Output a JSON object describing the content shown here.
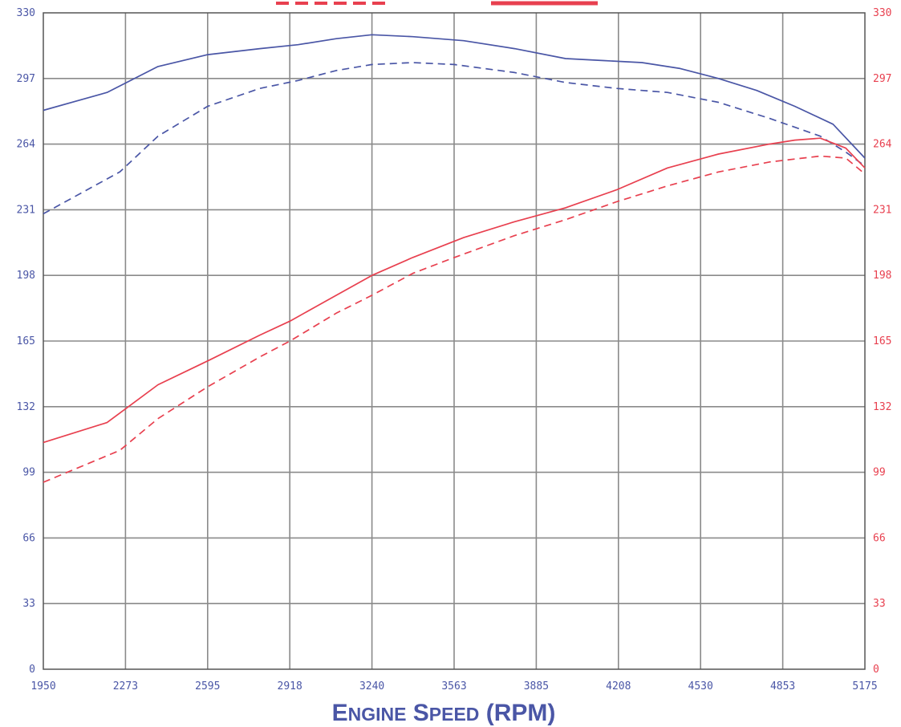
{
  "chart_data": {
    "type": "line",
    "xlabel": "Engine Speed (RPM)",
    "x_ticks": [
      "1950",
      "2273",
      "2595",
      "2918",
      "3240",
      "3563",
      "3885",
      "4208",
      "4530",
      "4853",
      "5175"
    ],
    "y_ticks_left": [
      "0",
      "33",
      "66",
      "99",
      "132",
      "165",
      "198",
      "231",
      "264",
      "297",
      "330"
    ],
    "y_ticks_right": [
      "0",
      "33",
      "66",
      "99",
      "132",
      "165",
      "198",
      "231",
      "264",
      "297",
      "330"
    ],
    "xlim": [
      1950,
      5175
    ],
    "ylim": [
      0,
      330
    ],
    "grid": true,
    "legend": "top-center",
    "colors": {
      "blue": "#4a56a6",
      "red": "#e8404f",
      "grid": "#8a8a8a"
    },
    "series": [
      {
        "color": "#4a56a6",
        "dash": "solid",
        "x": [
          1950,
          2200,
          2400,
          2595,
          2800,
          2950,
          3100,
          3240,
          3400,
          3600,
          3800,
          4000,
          4150,
          4300,
          4450,
          4600,
          4750,
          4900,
          5050,
          5175
        ],
        "y": [
          281,
          290,
          303,
          309,
          312,
          314,
          317,
          319,
          318,
          316,
          312,
          307,
          306,
          305,
          302,
          297,
          291,
          283,
          274,
          257
        ]
      },
      {
        "color": "#4a56a6",
        "dash": "dashed",
        "x": [
          1950,
          2250,
          2400,
          2595,
          2800,
          2950,
          3100,
          3240,
          3400,
          3563,
          3800,
          4000,
          4200,
          4400,
          4600,
          4800,
          5000,
          5100,
          5175
        ],
        "y": [
          229,
          250,
          268,
          283,
          292,
          296,
          301,
          304,
          305,
          304,
          300,
          295,
          292,
          290,
          285,
          277,
          268,
          260,
          253
        ]
      },
      {
        "color": "#e8404f",
        "dash": "solid",
        "x": [
          1950,
          2200,
          2400,
          2595,
          2800,
          2918,
          3100,
          3240,
          3400,
          3600,
          3800,
          4000,
          4200,
          4400,
          4600,
          4800,
          4900,
          5000,
          5100,
          5175
        ],
        "y": [
          114,
          124,
          143,
          155,
          168,
          175,
          188,
          198,
          207,
          217,
          225,
          232,
          241,
          252,
          259,
          264,
          266,
          267,
          262,
          252
        ]
      },
      {
        "color": "#e8404f",
        "dash": "dashed",
        "x": [
          1950,
          2250,
          2400,
          2595,
          2800,
          2918,
          3100,
          3240,
          3400,
          3563,
          3800,
          4000,
          4200,
          4400,
          4600,
          4800,
          5000,
          5100,
          5175
        ],
        "y": [
          94,
          110,
          126,
          142,
          157,
          165,
          179,
          188,
          199,
          207,
          218,
          226,
          235,
          243,
          250,
          255,
          258,
          257,
          249
        ]
      }
    ]
  }
}
